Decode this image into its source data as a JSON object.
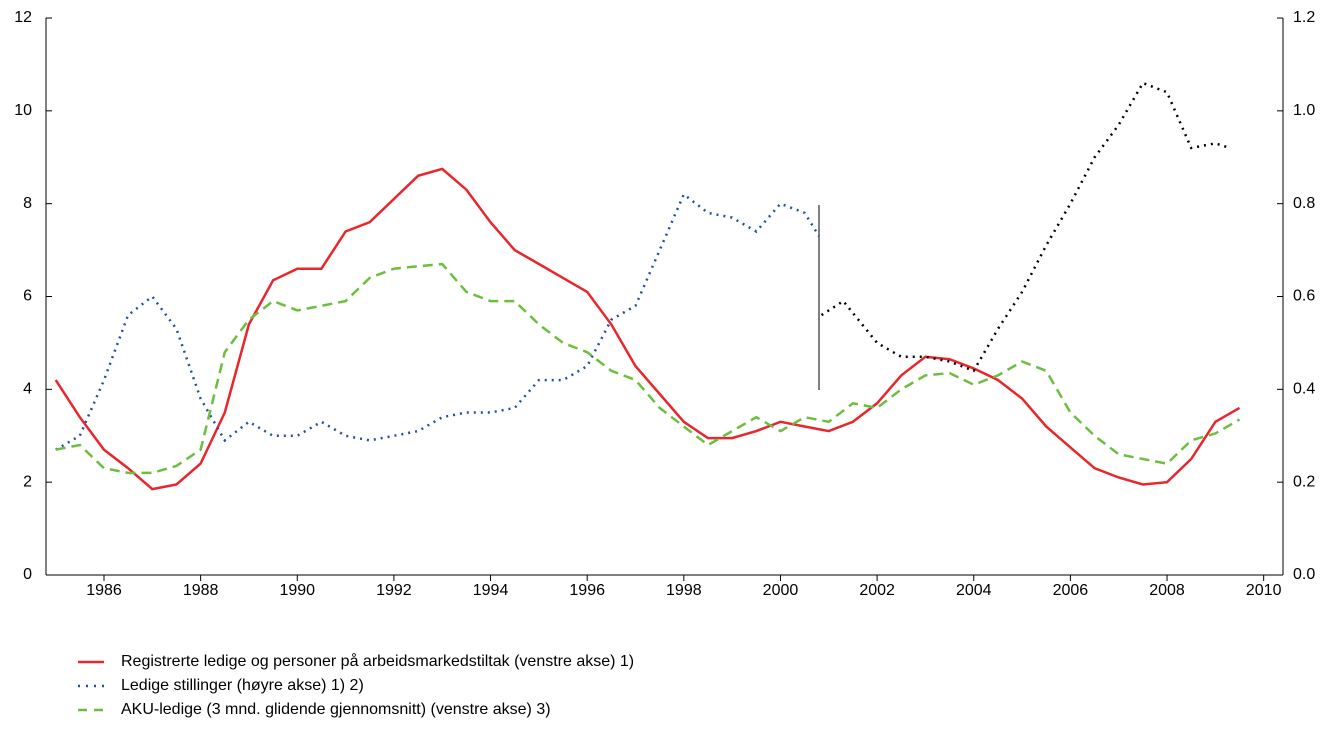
{
  "chart_data": {
    "type": "line",
    "xlim": [
      1984.8,
      2010.4
    ],
    "xticks": [
      1986,
      1988,
      1990,
      1992,
      1994,
      1996,
      1998,
      2000,
      2002,
      2004,
      2006,
      2008,
      2010
    ],
    "ylim": [
      0,
      12
    ],
    "yticks": [
      0,
      2,
      4,
      6,
      8,
      10,
      12
    ],
    "y2lim": [
      0,
      1.2
    ],
    "y2ticks": [
      {
        "value": 0,
        "label": "0.0"
      },
      0.2,
      0.4,
      0.6,
      0.8,
      {
        "value": 1,
        "label": "1.0"
      },
      1.2
    ],
    "series": [
      {
        "name": "Registrerte ledige og personer på arbeidsmarkedstiltak (venstre akse) 1)",
        "color": "#e8262b",
        "style": "solid",
        "x": [
          1985.0,
          1985.5,
          1986.0,
          1986.5,
          1987.0,
          1987.5,
          1988.0,
          1988.5,
          1989.0,
          1989.5,
          1990.0,
          1990.5,
          1991.0,
          1991.5,
          1992.0,
          1992.5,
          1993.0,
          1993.5,
          1994.0,
          1994.5,
          1995.0,
          1995.5,
          1996.0,
          1996.5,
          1997.0,
          1997.5,
          1998.0,
          1998.5,
          1999.0,
          1999.5,
          2000.0,
          2000.5,
          2001.0,
          2001.5,
          2002.0,
          2002.5,
          2003.0,
          2003.5,
          2004.0,
          2004.5,
          2005.0,
          2005.5,
          2006.0,
          2006.5,
          2007.0,
          2007.5,
          2008.0,
          2008.5,
          2009.0,
          2009.5
        ],
        "values": [
          4.2,
          3.4,
          2.7,
          2.3,
          1.85,
          1.95,
          2.4,
          3.5,
          5.4,
          6.35,
          6.6,
          6.6,
          7.4,
          7.6,
          8.1,
          8.6,
          8.75,
          8.3,
          7.6,
          7.0,
          6.7,
          6.4,
          6.1,
          5.4,
          4.5,
          3.9,
          3.3,
          2.95,
          2.95,
          3.1,
          3.3,
          3.2,
          3.1,
          3.3,
          3.7,
          4.3,
          4.7,
          4.65,
          4.45,
          4.2,
          3.8,
          3.2,
          2.75,
          2.3,
          2.1,
          1.95,
          2.0,
          2.5,
          3.3,
          3.6
        ]
      },
      {
        "name": "Ledige stillinger (høyre akse) 1) 2)",
        "color": "#1f4fa8",
        "style": "dotted",
        "axis": "y2",
        "x": [
          1985.0,
          1985.5,
          1986.0,
          1986.5,
          1987.0,
          1987.5,
          1988.0,
          1988.5,
          1989.0,
          1989.5,
          1990.0,
          1990.5,
          1991.0,
          1991.5,
          1992.0,
          1992.5,
          1993.0,
          1993.5,
          1994.0,
          1994.5,
          1995.0,
          1995.5,
          1996.0,
          1996.5,
          1997.0,
          1997.5,
          1998.0,
          1998.5,
          1999.0,
          1999.5,
          2000.0,
          2000.5,
          2000.8
        ],
        "values": [
          0.27,
          0.3,
          0.42,
          0.56,
          0.6,
          0.53,
          0.38,
          0.29,
          0.33,
          0.3,
          0.3,
          0.33,
          0.3,
          0.29,
          0.3,
          0.31,
          0.34,
          0.35,
          0.35,
          0.36,
          0.42,
          0.42,
          0.45,
          0.55,
          0.58,
          0.7,
          0.82,
          0.78,
          0.77,
          0.74,
          0.8,
          0.78,
          0.73
        ]
      },
      {
        "name": "AKU-ledige (3 mnd. glidende gjennomsnitt) (venstre akse) 3)",
        "color": "#6cbe3f",
        "style": "dashed",
        "x": [
          1985.0,
          1985.5,
          1986.0,
          1986.5,
          1987.0,
          1987.5,
          1988.0,
          1988.5,
          1989.0,
          1989.5,
          1990.0,
          1990.5,
          1991.0,
          1991.5,
          1992.0,
          1992.5,
          1993.0,
          1993.5,
          1994.0,
          1994.5,
          1995.0,
          1995.5,
          1996.0,
          1996.5,
          1997.0,
          1997.5,
          1998.0,
          1998.5,
          1999.0,
          1999.5,
          2000.0,
          2000.5,
          2001.0,
          2001.5,
          2002.0,
          2002.5,
          2003.0,
          2003.5,
          2004.0,
          2004.5,
          2005.0,
          2005.5,
          2006.0,
          2006.5,
          2007.0,
          2007.5,
          2008.0,
          2008.5,
          2009.0,
          2009.5
        ],
        "values": [
          2.7,
          2.8,
          2.3,
          2.2,
          2.2,
          2.35,
          2.7,
          4.8,
          5.5,
          5.9,
          5.7,
          5.8,
          5.9,
          6.4,
          6.6,
          6.65,
          6.7,
          6.1,
          5.9,
          5.9,
          5.4,
          5.0,
          4.8,
          4.4,
          4.2,
          3.6,
          3.2,
          2.8,
          3.1,
          3.4,
          3.1,
          3.4,
          3.3,
          3.7,
          3.6,
          4.0,
          4.3,
          4.35,
          4.1,
          4.3,
          4.6,
          4.4,
          3.5,
          3.0,
          2.6,
          2.5,
          2.4,
          2.9,
          3.05,
          3.35
        ]
      },
      {
        "color": "#000000",
        "style": "dotted",
        "axis": "y2",
        "x": [
          2000.85,
          2001.3,
          2002.0,
          2002.5,
          2003.0,
          2003.5,
          2004.0,
          2004.5,
          2005.0,
          2005.5,
          2006.0,
          2006.5,
          2007.0,
          2007.5,
          2008.0,
          2008.5,
          2009.0,
          2009.3
        ],
        "values": [
          0.56,
          0.59,
          0.5,
          0.47,
          0.47,
          0.46,
          0.44,
          0.53,
          0.61,
          0.71,
          0.8,
          0.9,
          0.97,
          1.06,
          1.04,
          0.92,
          0.93,
          0.92
        ]
      }
    ]
  }
}
